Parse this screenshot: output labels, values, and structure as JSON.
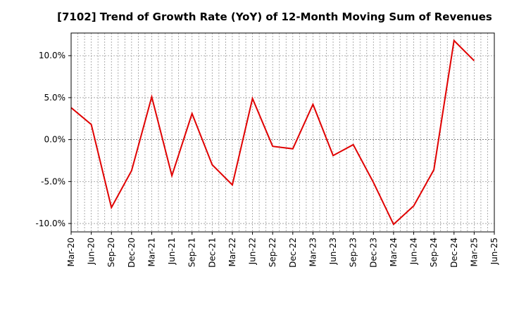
{
  "chart_data": {
    "type": "line",
    "title": "[7102]  Trend of Growth Rate (YoY) of 12-Month Moving Sum of Revenues",
    "xlabel": "",
    "ylabel": "",
    "x_ticks": [
      "Mar-20",
      "Jun-20",
      "Sep-20",
      "Dec-20",
      "Mar-21",
      "Jun-21",
      "Sep-21",
      "Dec-21",
      "Mar-22",
      "Jun-22",
      "Sep-22",
      "Dec-22",
      "Mar-23",
      "Jun-23",
      "Sep-23",
      "Dec-23",
      "Mar-24",
      "Jun-24",
      "Sep-24",
      "Dec-24",
      "Mar-25",
      "Jun-25"
    ],
    "x_grid_minor": "monthly",
    "y_ticks": [
      10,
      5,
      0,
      -5,
      -10
    ],
    "y_tick_labels": [
      "10.0%",
      "5.0%",
      "0.0%",
      "-5.0%",
      "-10.0%"
    ],
    "ylim": [
      -11,
      12.7
    ],
    "grid": true,
    "legend": "none",
    "series": [
      {
        "color": "#e00000",
        "x": [
          "Mar-20",
          "Jun-20",
          "Sep-20",
          "Dec-20",
          "Mar-21",
          "Jun-21",
          "Sep-21",
          "Dec-21",
          "Mar-22",
          "Jun-22",
          "Sep-22",
          "Dec-22",
          "Mar-23",
          "Jun-23",
          "Sep-23",
          "Dec-23",
          "Mar-24",
          "Jun-24",
          "Sep-24",
          "Dec-24",
          "Mar-25"
        ],
        "values": [
          3.8,
          1.8,
          -8.1,
          -3.7,
          5.1,
          -4.3,
          3.1,
          -3.0,
          -5.4,
          4.9,
          -0.8,
          -1.1,
          4.2,
          -1.9,
          -0.6,
          -5.1,
          -10.1,
          -7.9,
          -3.6,
          11.8,
          9.4
        ]
      }
    ]
  }
}
